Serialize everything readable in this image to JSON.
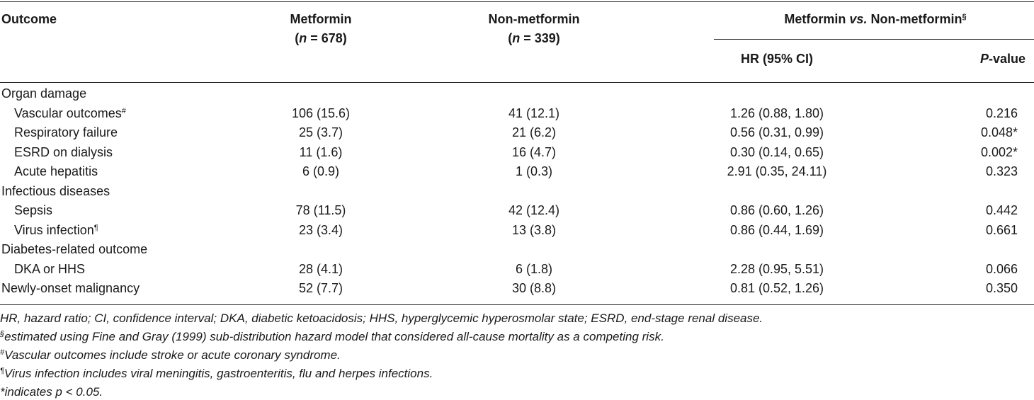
{
  "header": {
    "outcome": "Outcome",
    "metformin": "Metformin",
    "metformin_n_label": "n",
    "metformin_n_rest": " = 678)",
    "nonmetformin": "Non-metformin",
    "nonmetformin_n_label": "n",
    "nonmetformin_n_rest": " = 339)",
    "comparison_a": "Metformin ",
    "comparison_vs": "vs.",
    "comparison_b": " Non-metformin",
    "comparison_sup": "§",
    "hr": "HR (95% CI)",
    "pvalue_p": "P",
    "pvalue_rest": "-value"
  },
  "rows": [
    {
      "label": "Organ damage",
      "indent": false,
      "metformin": "",
      "nonmetformin": "",
      "hr": "",
      "p": "",
      "sup": ""
    },
    {
      "label": "Vascular outcomes",
      "indent": true,
      "metformin": "106 (15.6)",
      "nonmetformin": "41 (12.1)",
      "hr": "1.26 (0.88, 1.80)",
      "p": "0.216",
      "sup": "#"
    },
    {
      "label": "Respiratory failure",
      "indent": true,
      "metformin": "25 (3.7)",
      "nonmetformin": "21 (6.2)",
      "hr": "0.56 (0.31, 0.99)",
      "p": "0.048*",
      "sup": ""
    },
    {
      "label": "ESRD on dialysis",
      "indent": true,
      "metformin": "11 (1.6)",
      "nonmetformin": "16 (4.7)",
      "hr": "0.30 (0.14, 0.65)",
      "p": "0.002*",
      "sup": ""
    },
    {
      "label": "Acute hepatitis",
      "indent": true,
      "metformin": "6 (0.9)",
      "nonmetformin": "1 (0.3)",
      "hr": "2.91 (0.35, 24.11)",
      "p": "0.323",
      "sup": ""
    },
    {
      "label": "Infectious diseases",
      "indent": false,
      "metformin": "",
      "nonmetformin": "",
      "hr": "",
      "p": "",
      "sup": ""
    },
    {
      "label": "Sepsis",
      "indent": true,
      "metformin": "78 (11.5)",
      "nonmetformin": "42 (12.4)",
      "hr": "0.86 (0.60, 1.26)",
      "p": "0.442",
      "sup": ""
    },
    {
      "label": "Virus infection",
      "indent": true,
      "metformin": "23 (3.4)",
      "nonmetformin": "13 (3.8)",
      "hr": "0.86 (0.44, 1.69)",
      "p": "0.661",
      "sup": "¶"
    },
    {
      "label": "Diabetes-related outcome",
      "indent": false,
      "metformin": "",
      "nonmetformin": "",
      "hr": "",
      "p": "",
      "sup": ""
    },
    {
      "label": "DKA or HHS",
      "indent": true,
      "metformin": "28 (4.1)",
      "nonmetformin": "6 (1.8)",
      "hr": "2.28 (0.95, 5.51)",
      "p": "0.066",
      "sup": ""
    },
    {
      "label": "Newly-onset malignancy",
      "indent": false,
      "metformin": "52 (7.7)",
      "nonmetformin": "30 (8.8)",
      "hr": "0.81 (0.52, 1.26)",
      "p": "0.350",
      "sup": ""
    }
  ],
  "footnotes": [
    {
      "sup": "",
      "text": "HR, hazard ratio; CI, confidence interval; DKA, diabetic ketoacidosis; HHS, hyperglycemic hyperosmolar state; ESRD, end-stage renal disease."
    },
    {
      "sup": "§",
      "text": "estimated using Fine and Gray (1999) sub-distribution hazard model that considered all-cause mortality as a competing risk."
    },
    {
      "sup": "#",
      "text": "Vascular outcomes include stroke or acute coronary syndrome."
    },
    {
      "sup": "¶",
      "text": "Virus infection includes viral meningitis, gastroenteritis, flu and herpes infections."
    },
    {
      "sup": "",
      "text": "*indicates p < 0.05."
    }
  ]
}
